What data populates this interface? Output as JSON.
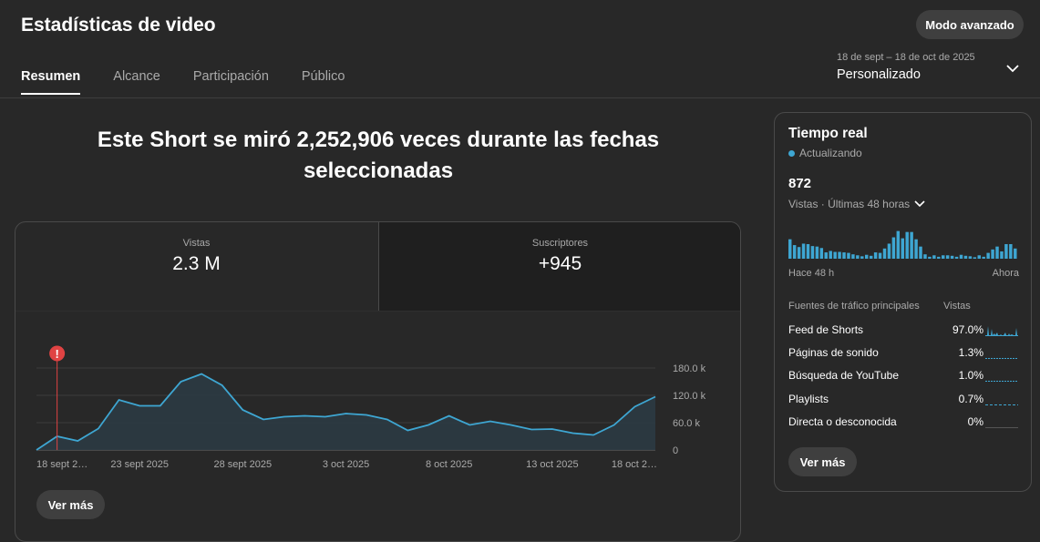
{
  "header": {
    "title": "Estadísticas de video",
    "advanced_button": "Modo avanzado",
    "date_range": "18 de sept – 18 de oct de 2025",
    "period": "Personalizado"
  },
  "tabs": [
    {
      "label": "Resumen",
      "active": true
    },
    {
      "label": "Alcance",
      "active": false
    },
    {
      "label": "Participación",
      "active": false
    },
    {
      "label": "Público",
      "active": false
    }
  ],
  "headline": {
    "line1": "Este Short se miró 2,252,906 veces durante las fechas",
    "line2": "seleccionadas"
  },
  "metrics": [
    {
      "label": "Vistas",
      "value": "2.3 M"
    },
    {
      "label": "Suscriptores",
      "value": "+945"
    }
  ],
  "main_chart": {
    "marker_icon": "exclamation-icon",
    "see_more": "Ver más"
  },
  "chart_data": {
    "type": "area",
    "x": [
      "18 sept 2025",
      "19 sept 2025",
      "20 sept 2025",
      "21 sept 2025",
      "22 sept 2025",
      "23 sept 2025",
      "24 sept 2025",
      "25 sept 2025",
      "26 sept 2025",
      "27 sept 2025",
      "28 sept 2025",
      "29 sept 2025",
      "30 sept 2025",
      "1 oct 2025",
      "2 oct 2025",
      "3 oct 2025",
      "4 oct 2025",
      "5 oct 2025",
      "6 oct 2025",
      "7 oct 2025",
      "8 oct 2025",
      "9 oct 2025",
      "10 oct 2025",
      "11 oct 2025",
      "12 oct 2025",
      "13 oct 2025",
      "14 oct 2025",
      "15 oct 2025",
      "16 oct 2025",
      "17 oct 2025",
      "18 oct 2025"
    ],
    "series": [
      {
        "values": [
          0,
          30000,
          20000,
          47000,
          110000,
          97000,
          97000,
          150000,
          167000,
          142000,
          88000,
          67000,
          73000,
          75000,
          73000,
          80000,
          77000,
          67000,
          43000,
          55000,
          75000,
          55000,
          63000,
          55000,
          45000,
          46000,
          37000,
          33000,
          55000,
          95000,
          117000
        ]
      }
    ],
    "xtick_labels": [
      "18 sept 2…",
      "23 sept 2025",
      "28 sept 2025",
      "3 oct 2025",
      "8 oct 2025",
      "13 oct 2025",
      "18 oct 2…"
    ],
    "xtick_index": [
      0,
      5,
      10,
      15,
      20,
      25,
      30
    ],
    "ytick_labels": [
      "180.0 k",
      "120.0 k",
      "60.0 k",
      "0"
    ],
    "ytick_values": [
      180000,
      120000,
      60000,
      0
    ],
    "ylim": [
      0,
      180000
    ],
    "marker_index": 1,
    "grid": true,
    "line_color": "#3ea6d2",
    "fill_color": "#2b3a42",
    "marker_color": "#e04343"
  },
  "realtime": {
    "title": "Tiempo real",
    "status": "Actualizando",
    "count": "872",
    "window": "Vistas · Últimas 48 horas",
    "bars": [
      40,
      28,
      24,
      31,
      30,
      26,
      25,
      22,
      13,
      16,
      14,
      14,
      13,
      12,
      9,
      7,
      5,
      8,
      6,
      13,
      12,
      21,
      31,
      44,
      57,
      42,
      55,
      55,
      40,
      25,
      9,
      4,
      7,
      4,
      7,
      7,
      6,
      4,
      8,
      6,
      5,
      3,
      7,
      4,
      12,
      19,
      25,
      15,
      30,
      30,
      21
    ],
    "bars_max": 60,
    "axis_start": "Hace 48 h",
    "axis_end": "Ahora",
    "bar_color": "#3ea6d2",
    "sources_header": "Fuentes de tráfico principales",
    "views_header": "Vistas",
    "sources": [
      {
        "name": "Feed de Shorts",
        "pct": "97.0%"
      },
      {
        "name": "Páginas de sonido",
        "pct": "1.3%"
      },
      {
        "name": "Búsqueda de YouTube",
        "pct": "1.0%"
      },
      {
        "name": "Playlists",
        "pct": "0.7%"
      },
      {
        "name": "Directa o desconocida",
        "pct": "0%"
      }
    ],
    "see_more": "Ver más"
  }
}
